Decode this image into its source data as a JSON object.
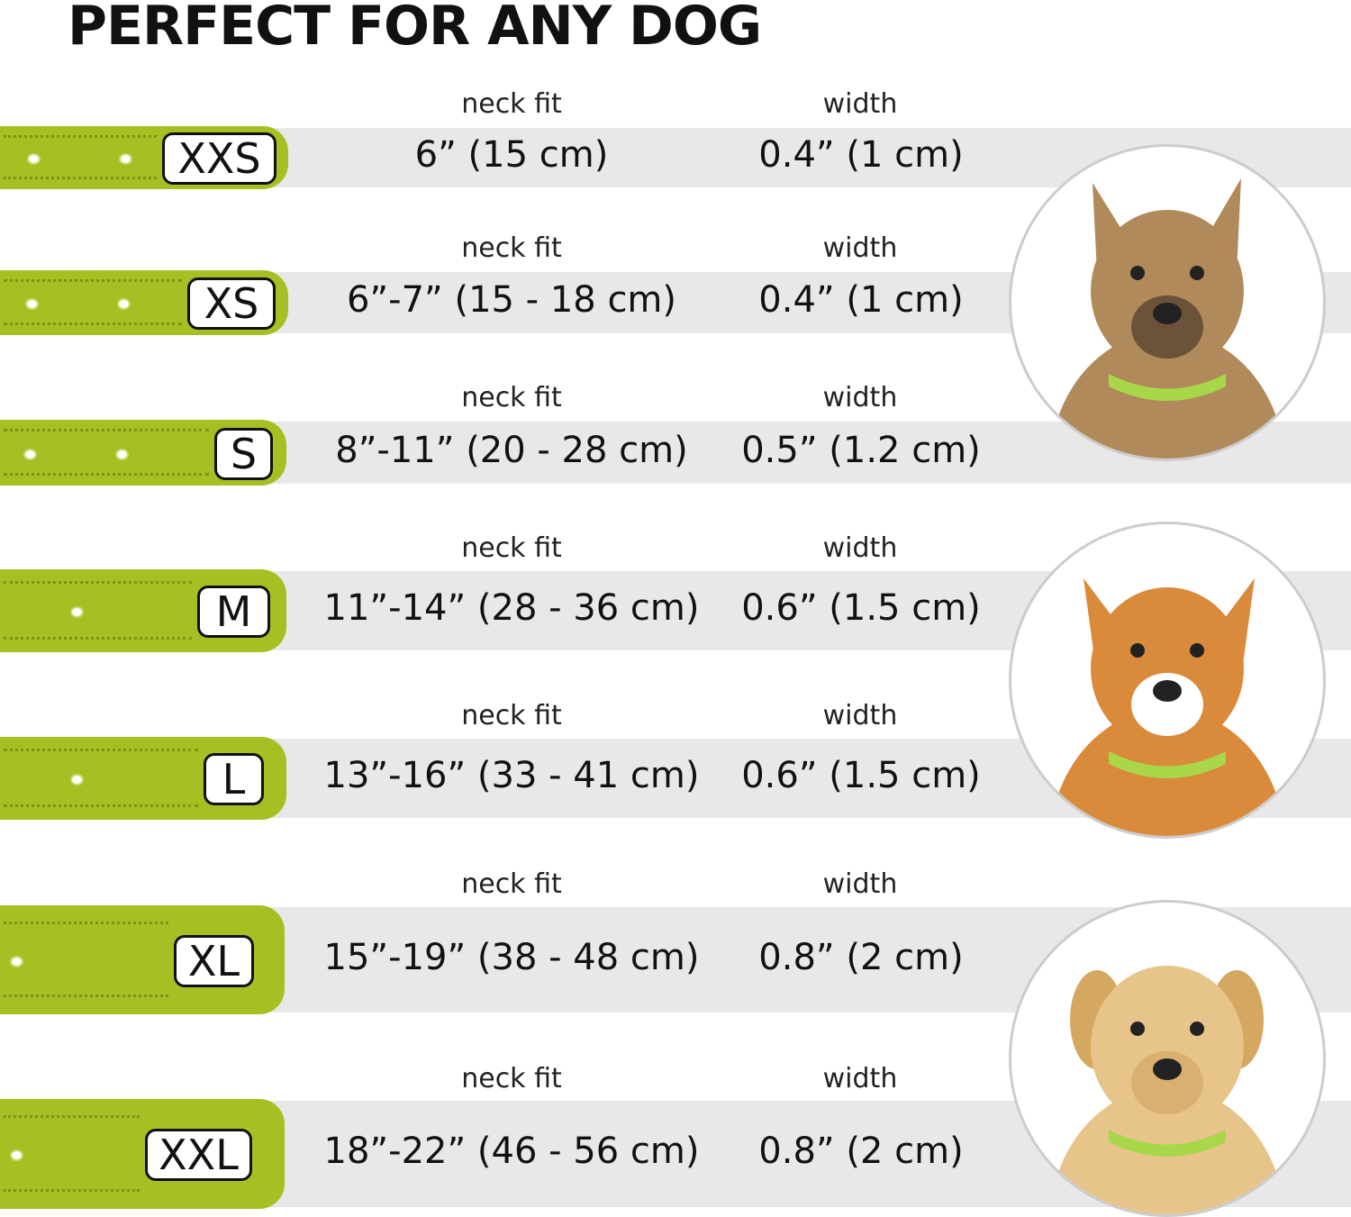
{
  "title": "PERFECT FOR ANY DOG",
  "colors": {
    "collar": "#a8bf24",
    "band": "#e8e8e8"
  },
  "sizes": [
    {
      "size": "XXS",
      "neck_label": "neck fit",
      "neck": "6” (15 cm)",
      "width_label": "width",
      "width": "0.4” (1 cm)"
    },
    {
      "size": "XS",
      "neck_label": "neck fit",
      "neck": "6”-7” (15 - 18 cm)",
      "width_label": "width",
      "width": "0.4” (1 cm)"
    },
    {
      "size": "S",
      "neck_label": "neck fit",
      "neck": "8”-11” (20 - 28 cm)",
      "width_label": "width",
      "width": "0.5” (1.2 cm)"
    },
    {
      "size": "M",
      "neck_label": "neck fit",
      "neck": "11”-14” (28 - 36 cm)",
      "width_label": "width",
      "width": "0.6” (1.5 cm)"
    },
    {
      "size": "L",
      "neck_label": "neck fit",
      "neck": "13”-16” (33 - 41 cm)",
      "width_label": "width",
      "width": "0.6” (1.5 cm)"
    },
    {
      "size": "XL",
      "neck_label": "neck fit",
      "neck": "15”-19” (38 - 48 cm)",
      "width_label": "width",
      "width": "0.8” (2 cm)"
    },
    {
      "size": "XXL",
      "neck_label": "neck fit",
      "neck": "18”-22” (46 - 56 cm)",
      "width_label": "width",
      "width": "0.8” (2 cm)"
    }
  ],
  "photos": [
    {
      "icon": "small-terrier-photo"
    },
    {
      "icon": "corgi-photo"
    },
    {
      "icon": "labrador-photo"
    }
  ]
}
